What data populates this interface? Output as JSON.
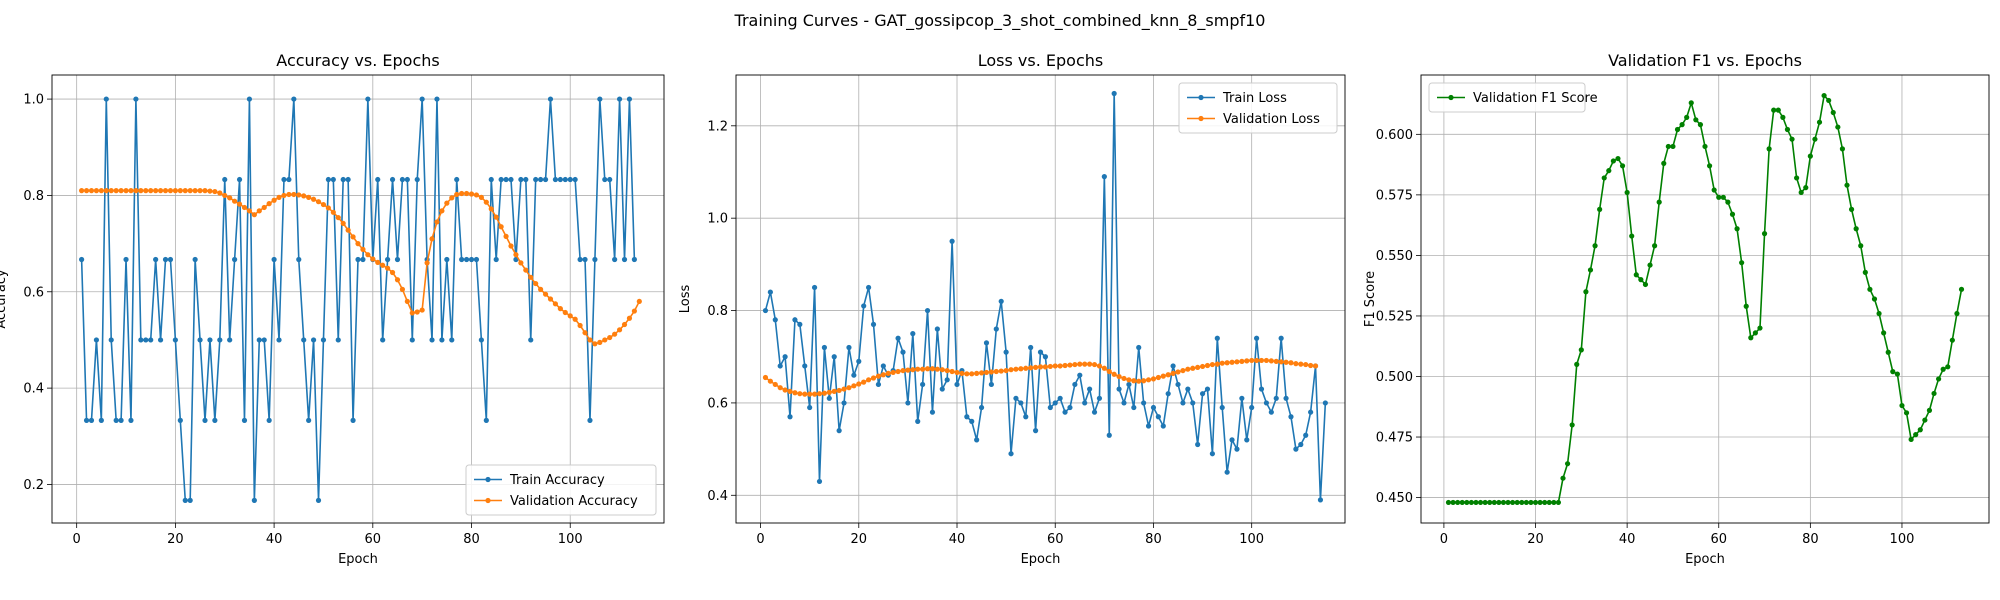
{
  "figure": {
    "suptitle": "Training Curves - GAT_gossipcop_3_shot_combined_knn_8_smpf10"
  },
  "colors": {
    "blue": "#1f77b4",
    "orange": "#ff7f0e",
    "green": "#008000",
    "grid": "#b0b0b0"
  },
  "chart_data": [
    {
      "type": "line",
      "title": "Accuracy vs. Epochs",
      "xlabel": "Epoch",
      "ylabel": "Accuracy",
      "xlim": [
        -5,
        119
      ],
      "ylim": [
        0.12,
        1.05
      ],
      "xticks": [
        0,
        20,
        40,
        60,
        80,
        100
      ],
      "xtick_labels": [
        "0",
        "20",
        "40",
        "60",
        "80",
        "100"
      ],
      "yticks": [
        0.2,
        0.4,
        0.6,
        0.8,
        1.0
      ],
      "ytick_labels": [
        "0.2",
        "0.4",
        "0.6",
        "0.8",
        "1.0"
      ],
      "grid": true,
      "legend_position": "lower-right",
      "x_start": 1,
      "series": [
        {
          "name": "Train Accuracy",
          "color": "#1f77b4",
          "values": [
            0.667,
            0.333,
            0.333,
            0.5,
            0.333,
            1.0,
            0.5,
            0.333,
            0.333,
            0.667,
            0.333,
            1.0,
            0.5,
            0.5,
            0.5,
            0.667,
            0.5,
            0.667,
            0.667,
            0.5,
            0.333,
            0.167,
            0.167,
            0.667,
            0.5,
            0.333,
            0.5,
            0.333,
            0.5,
            0.833,
            0.5,
            0.667,
            0.833,
            0.333,
            1.0,
            0.167,
            0.5,
            0.5,
            0.333,
            0.667,
            0.5,
            0.833,
            0.833,
            1.0,
            0.667,
            0.5,
            0.333,
            0.5,
            0.167,
            0.5,
            0.833,
            0.833,
            0.5,
            0.833,
            0.833,
            0.333,
            0.667,
            0.667,
            1.0,
            0.667,
            0.833,
            0.5,
            0.667,
            0.833,
            0.667,
            0.833,
            0.833,
            0.5,
            0.833,
            1.0,
            0.667,
            0.5,
            1.0,
            0.5,
            0.667,
            0.5,
            0.833,
            0.667,
            0.667,
            0.667,
            0.667,
            0.5,
            0.333,
            0.833,
            0.667,
            0.833,
            0.833,
            0.833,
            0.667,
            0.833,
            0.833,
            0.5,
            0.833,
            0.833,
            0.833,
            1.0,
            0.833,
            0.833,
            0.833,
            0.833,
            0.833,
            0.667,
            0.667,
            0.333,
            0.667,
            1.0,
            0.833,
            0.833,
            0.667,
            1.0,
            0.667,
            1.0,
            0.667
          ]
        },
        {
          "name": "Validation Accuracy",
          "color": "#ff7f0e",
          "values": [
            0.81,
            0.81,
            0.81,
            0.81,
            0.81,
            0.81,
            0.81,
            0.81,
            0.81,
            0.81,
            0.81,
            0.81,
            0.81,
            0.81,
            0.81,
            0.81,
            0.81,
            0.81,
            0.81,
            0.81,
            0.81,
            0.81,
            0.81,
            0.81,
            0.81,
            0.81,
            0.809,
            0.808,
            0.805,
            0.8,
            0.795,
            0.788,
            0.782,
            0.775,
            0.768,
            0.76,
            0.768,
            0.775,
            0.783,
            0.79,
            0.796,
            0.8,
            0.802,
            0.802,
            0.801,
            0.799,
            0.796,
            0.792,
            0.787,
            0.781,
            0.774,
            0.765,
            0.754,
            0.742,
            0.728,
            0.714,
            0.7,
            0.688,
            0.677,
            0.668,
            0.661,
            0.655,
            0.649,
            0.64,
            0.625,
            0.605,
            0.58,
            0.556,
            0.558,
            0.562,
            0.66,
            0.71,
            0.745,
            0.768,
            0.784,
            0.795,
            0.802,
            0.804,
            0.804,
            0.803,
            0.801,
            0.796,
            0.786,
            0.772,
            0.755,
            0.735,
            0.715,
            0.695,
            0.677,
            0.66,
            0.645,
            0.63,
            0.617,
            0.605,
            0.595,
            0.585,
            0.575,
            0.565,
            0.557,
            0.55,
            0.543,
            0.53,
            0.515,
            0.5,
            0.492,
            0.495,
            0.5,
            0.505,
            0.512,
            0.521,
            0.532,
            0.545,
            0.56,
            0.58
          ]
        }
      ]
    },
    {
      "type": "line",
      "title": "Loss vs. Epochs",
      "xlabel": "Epoch",
      "ylabel": "Loss",
      "xlim": [
        -5,
        119
      ],
      "ylim": [
        0.34,
        1.31
      ],
      "xticks": [
        0,
        20,
        40,
        60,
        80,
        100
      ],
      "xtick_labels": [
        "0",
        "20",
        "40",
        "60",
        "80",
        "100"
      ],
      "yticks": [
        0.4,
        0.6,
        0.8,
        1.0,
        1.2
      ],
      "ytick_labels": [
        "0.4",
        "0.6",
        "0.8",
        "1.0",
        "1.2"
      ],
      "grid": true,
      "legend_position": "top-right",
      "x_start": 1,
      "series": [
        {
          "name": "Train Loss",
          "color": "#1f77b4",
          "values": [
            0.8,
            0.84,
            0.78,
            0.68,
            0.7,
            0.57,
            0.78,
            0.77,
            0.68,
            0.59,
            0.85,
            0.43,
            0.72,
            0.61,
            0.7,
            0.54,
            0.6,
            0.72,
            0.66,
            0.69,
            0.81,
            0.85,
            0.77,
            0.64,
            0.68,
            0.66,
            0.67,
            0.74,
            0.71,
            0.6,
            0.75,
            0.56,
            0.64,
            0.8,
            0.58,
            0.76,
            0.63,
            0.65,
            0.95,
            0.64,
            0.67,
            0.57,
            0.56,
            0.52,
            0.59,
            0.73,
            0.64,
            0.76,
            0.82,
            0.71,
            0.49,
            0.61,
            0.6,
            0.57,
            0.72,
            0.54,
            0.71,
            0.7,
            0.59,
            0.6,
            0.61,
            0.58,
            0.59,
            0.64,
            0.66,
            0.6,
            0.63,
            0.58,
            0.61,
            1.09,
            0.53,
            1.27,
            0.63,
            0.6,
            0.64,
            0.59,
            0.72,
            0.6,
            0.55,
            0.59,
            0.57,
            0.55,
            0.62,
            0.68,
            0.64,
            0.6,
            0.63,
            0.6,
            0.51,
            0.62,
            0.63,
            0.49,
            0.74,
            0.59,
            0.45,
            0.52,
            0.5,
            0.61,
            0.52,
            0.59,
            0.74,
            0.63,
            0.6,
            0.58,
            0.61,
            0.74,
            0.61,
            0.57,
            0.5,
            0.51,
            0.53,
            0.58,
            0.68,
            0.39,
            0.6
          ]
        },
        {
          "name": "Validation Loss",
          "color": "#ff7f0e",
          "values": [
            0.655,
            0.647,
            0.64,
            0.633,
            0.628,
            0.625,
            0.622,
            0.62,
            0.619,
            0.619,
            0.619,
            0.62,
            0.621,
            0.623,
            0.625,
            0.627,
            0.63,
            0.633,
            0.637,
            0.641,
            0.645,
            0.65,
            0.654,
            0.658,
            0.661,
            0.664,
            0.666,
            0.668,
            0.67,
            0.671,
            0.672,
            0.673,
            0.673,
            0.674,
            0.674,
            0.673,
            0.672,
            0.67,
            0.668,
            0.666,
            0.664,
            0.663,
            0.663,
            0.664,
            0.665,
            0.666,
            0.667,
            0.668,
            0.669,
            0.67,
            0.672,
            0.673,
            0.674,
            0.675,
            0.676,
            0.677,
            0.678,
            0.678,
            0.679,
            0.68,
            0.68,
            0.681,
            0.682,
            0.683,
            0.684,
            0.684,
            0.684,
            0.683,
            0.68,
            0.675,
            0.668,
            0.662,
            0.657,
            0.653,
            0.65,
            0.648,
            0.647,
            0.648,
            0.65,
            0.652,
            0.655,
            0.658,
            0.661,
            0.664,
            0.667,
            0.67,
            0.673,
            0.675,
            0.677,
            0.679,
            0.681,
            0.683,
            0.684,
            0.686,
            0.687,
            0.688,
            0.689,
            0.69,
            0.691,
            0.692,
            0.692,
            0.692,
            0.692,
            0.691,
            0.69,
            0.689,
            0.688,
            0.687,
            0.685,
            0.684,
            0.683,
            0.681,
            0.68
          ]
        }
      ]
    },
    {
      "type": "line",
      "title": "Validation F1 vs. Epochs",
      "xlabel": "Epoch",
      "ylabel": "F1 Score",
      "xlim": [
        -5,
        119
      ],
      "ylim": [
        0.4395,
        0.6245
      ],
      "xticks": [
        0,
        20,
        40,
        60,
        80,
        100
      ],
      "xtick_labels": [
        "0",
        "20",
        "40",
        "60",
        "80",
        "100"
      ],
      "yticks": [
        0.45,
        0.475,
        0.5,
        0.525,
        0.55,
        0.575,
        0.6
      ],
      "ytick_labels": [
        "0.450",
        "0.475",
        "0.500",
        "0.525",
        "0.550",
        "0.575",
        "0.600"
      ],
      "grid": true,
      "legend_position": "top-left",
      "x_start": 1,
      "series": [
        {
          "name": "Validation F1 Score",
          "color": "#008000",
          "values": [
            0.448,
            0.448,
            0.448,
            0.448,
            0.448,
            0.448,
            0.448,
            0.448,
            0.448,
            0.448,
            0.448,
            0.448,
            0.448,
            0.448,
            0.448,
            0.448,
            0.448,
            0.448,
            0.448,
            0.448,
            0.448,
            0.448,
            0.448,
            0.448,
            0.448,
            0.458,
            0.464,
            0.48,
            0.505,
            0.511,
            0.535,
            0.544,
            0.554,
            0.569,
            0.582,
            0.585,
            0.589,
            0.59,
            0.587,
            0.576,
            0.558,
            0.542,
            0.54,
            0.538,
            0.546,
            0.554,
            0.572,
            0.588,
            0.595,
            0.595,
            0.602,
            0.604,
            0.607,
            0.613,
            0.606,
            0.604,
            0.595,
            0.587,
            0.577,
            0.574,
            0.574,
            0.572,
            0.567,
            0.561,
            0.547,
            0.529,
            0.516,
            0.518,
            0.52,
            0.559,
            0.594,
            0.61,
            0.61,
            0.607,
            0.602,
            0.598,
            0.582,
            0.576,
            0.578,
            0.591,
            0.598,
            0.605,
            0.616,
            0.614,
            0.609,
            0.603,
            0.594,
            0.579,
            0.569,
            0.561,
            0.554,
            0.543,
            0.536,
            0.532,
            0.526,
            0.518,
            0.51,
            0.502,
            0.501,
            0.488,
            0.485,
            0.474,
            0.476,
            0.478,
            0.482,
            0.486,
            0.493,
            0.499,
            0.503,
            0.504,
            0.515,
            0.526,
            0.536
          ]
        }
      ]
    }
  ]
}
